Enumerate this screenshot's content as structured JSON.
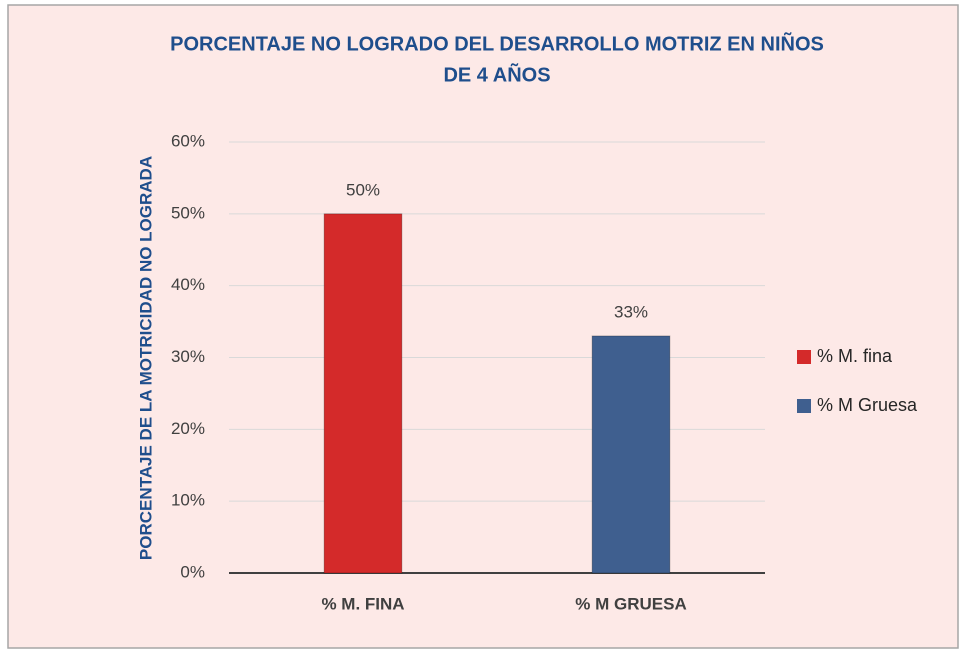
{
  "chart_data": {
    "type": "bar",
    "title": "PORCENTAJE NO LOGRADO DEL DESARROLLO MOTRIZ EN NIÑOS",
    "subtitle": "DE 4 AÑOS",
    "y_label": "PORCENTAJE DE LA MOTRICIDAD NO LOGRADA",
    "categories": [
      "% M. FINA",
      "% M GRUESA"
    ],
    "series": [
      {
        "name": "% M. fina",
        "color": "#d42a2a",
        "values": [
          50,
          null
        ],
        "value_labels": [
          "50%",
          null
        ]
      },
      {
        "name": "% M Gruesa",
        "color": "#3f5f8f",
        "values": [
          null,
          33
        ],
        "value_labels": [
          null,
          "33%"
        ]
      }
    ],
    "ylim": [
      0,
      60
    ],
    "yticks": [
      {
        "value": 0,
        "label": "0%"
      },
      {
        "value": 10,
        "label": "10%"
      },
      {
        "value": 20,
        "label": "20%"
      },
      {
        "value": 30,
        "label": "30%"
      },
      {
        "value": 40,
        "label": "40%"
      },
      {
        "value": 50,
        "label": "50%"
      },
      {
        "value": 60,
        "label": "60%"
      }
    ],
    "grid": true,
    "legend": "right"
  }
}
